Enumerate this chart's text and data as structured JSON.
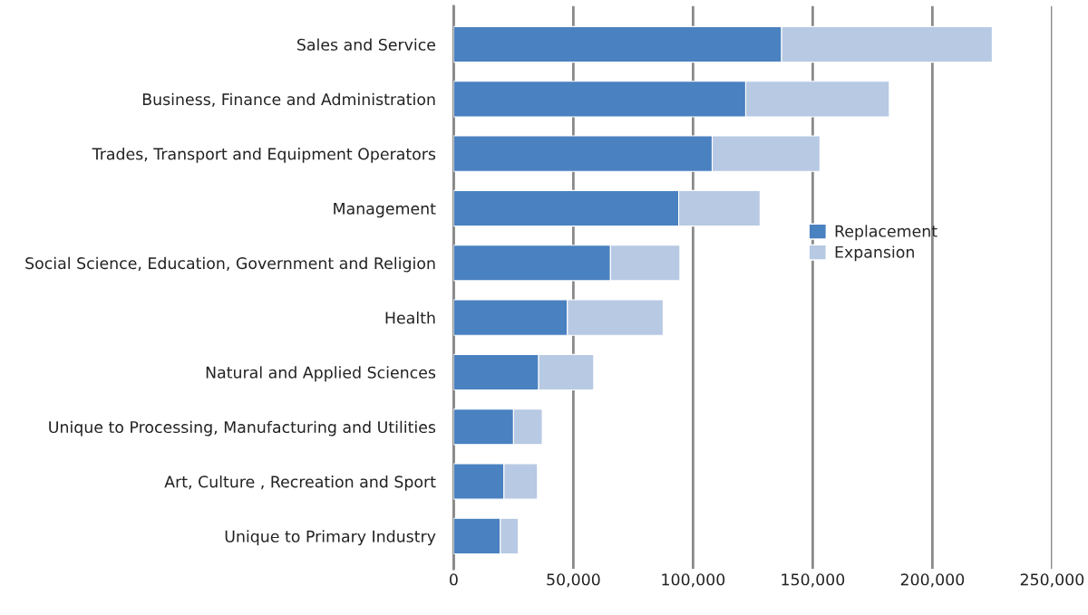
{
  "chart_data": {
    "type": "bar",
    "orientation": "horizontal",
    "stacked": true,
    "categories": [
      "Sales and Service",
      "Business, Finance and Administration",
      "Trades, Transport and Equipment Operators",
      "Management",
      "Social Science, Education, Government and Religion",
      "Health",
      "Natural and Applied Sciences",
      "Unique to Processing, Manufacturing and Utilities",
      "Art, Culture , Recreation and Sport",
      "Unique to Primary Industry"
    ],
    "series": [
      {
        "name": "Replacement",
        "color": "#4a81c0",
        "values": [
          137000,
          122000,
          108000,
          94000,
          65500,
          47500,
          35500,
          25000,
          21000,
          19500
        ]
      },
      {
        "name": "Expansion",
        "color": "#b7c9e3",
        "values": [
          88000,
          60000,
          45000,
          34000,
          29000,
          40000,
          23000,
          12000,
          14000,
          7500
        ]
      }
    ],
    "xlim": [
      0,
      250000
    ],
    "xticks": [
      {
        "value": 0,
        "label": "0"
      },
      {
        "value": 50000,
        "label": "50,000"
      },
      {
        "value": 100000,
        "label": "100,000"
      },
      {
        "value": 150000,
        "label": "150,000"
      },
      {
        "value": 200000,
        "label": "200,000"
      },
      {
        "value": 250000,
        "label": "250,000"
      }
    ],
    "grid": "x",
    "legend": "right"
  }
}
